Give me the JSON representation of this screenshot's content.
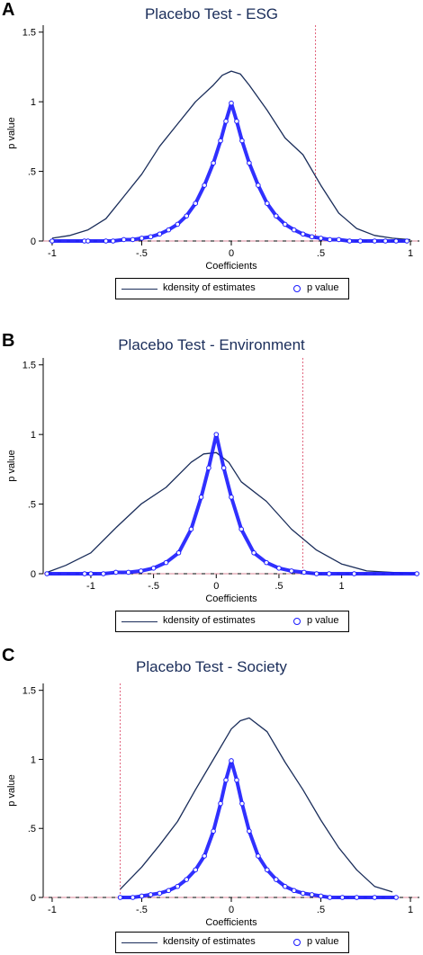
{
  "colors": {
    "density": "#1a2d5a",
    "pvalue": "#1a1aff",
    "vline": "#e0607a",
    "hline": "#d9879a",
    "title": "#1a2d5a"
  },
  "legend": {
    "density_label": "kdensity of estimates",
    "pvalue_label": "p value"
  },
  "chart_data": [
    {
      "type": "line",
      "panel": "A",
      "title": "Placebo Test - ESG",
      "xlabel": "Coefficients",
      "ylabel": "p value",
      "xlim": [
        -1.05,
        1.05
      ],
      "ylim": [
        0,
        1.55
      ],
      "xticks": [
        -1,
        -0.5,
        0,
        0.5,
        1
      ],
      "xtick_labels": [
        "-1",
        "-.5",
        "0",
        ".5",
        "1"
      ],
      "yticks": [
        0,
        0.5,
        1,
        1.5
      ],
      "ytick_labels": [
        "0",
        ".5",
        "1",
        "1.5"
      ],
      "vline": 0.47,
      "hline": 0.0,
      "series": [
        {
          "name": "kdensity of estimates",
          "kind": "line",
          "x": [
            -1.0,
            -0.9,
            -0.8,
            -0.7,
            -0.6,
            -0.5,
            -0.4,
            -0.3,
            -0.2,
            -0.1,
            -0.05,
            0.0,
            0.05,
            0.1,
            0.2,
            0.3,
            0.4,
            0.5,
            0.6,
            0.7,
            0.8,
            0.9,
            1.0
          ],
          "y": [
            0.02,
            0.04,
            0.08,
            0.16,
            0.32,
            0.48,
            0.68,
            0.84,
            1.0,
            1.12,
            1.19,
            1.22,
            1.2,
            1.12,
            0.94,
            0.74,
            0.62,
            0.4,
            0.2,
            0.09,
            0.04,
            0.02,
            0.01
          ]
        },
        {
          "name": "p value",
          "kind": "scatter",
          "x": [
            -1.0,
            -0.82,
            -0.8,
            -0.7,
            -0.66,
            -0.6,
            -0.55,
            -0.5,
            -0.45,
            -0.4,
            -0.35,
            -0.3,
            -0.25,
            -0.2,
            -0.15,
            -0.1,
            -0.06,
            -0.03,
            0.0,
            0.03,
            0.06,
            0.1,
            0.15,
            0.2,
            0.25,
            0.3,
            0.35,
            0.4,
            0.45,
            0.5,
            0.55,
            0.6,
            0.66,
            0.72,
            0.8,
            0.86,
            0.92,
            0.98
          ],
          "y": [
            0.0,
            0.0,
            0.0,
            0.0,
            0.0,
            0.01,
            0.01,
            0.02,
            0.03,
            0.05,
            0.08,
            0.12,
            0.18,
            0.27,
            0.4,
            0.56,
            0.72,
            0.86,
            0.99,
            0.86,
            0.72,
            0.56,
            0.4,
            0.27,
            0.18,
            0.12,
            0.08,
            0.05,
            0.03,
            0.02,
            0.01,
            0.01,
            0.0,
            0.0,
            0.0,
            0.0,
            0.0,
            0.0
          ]
        }
      ]
    },
    {
      "type": "line",
      "panel": "B",
      "title": "Placebo Test - Environment",
      "xlabel": "Coefficients",
      "ylabel": "p value",
      "xlim": [
        -1.38,
        1.62
      ],
      "ylim": [
        0,
        1.55
      ],
      "xticks": [
        -1,
        -0.5,
        0,
        0.5,
        1
      ],
      "xtick_labels": [
        "-1",
        "-.5",
        "0",
        ".5",
        "1"
      ],
      "yticks": [
        0,
        0.5,
        1,
        1.5
      ],
      "ytick_labels": [
        "0",
        ".5",
        "1",
        "1.5"
      ],
      "vline": 0.69,
      "hline": 0.0,
      "series": [
        {
          "name": "kdensity of estimates",
          "kind": "line",
          "x": [
            -1.35,
            -1.2,
            -1.0,
            -0.8,
            -0.6,
            -0.4,
            -0.2,
            -0.1,
            0.0,
            0.1,
            0.2,
            0.4,
            0.6,
            0.8,
            1.0,
            1.2,
            1.4,
            1.6
          ],
          "y": [
            0.01,
            0.06,
            0.15,
            0.33,
            0.5,
            0.62,
            0.8,
            0.86,
            0.87,
            0.8,
            0.66,
            0.52,
            0.32,
            0.17,
            0.07,
            0.02,
            0.01,
            0.0
          ]
        },
        {
          "name": "p value",
          "kind": "scatter",
          "x": [
            -1.35,
            -1.05,
            -1.0,
            -0.9,
            -0.8,
            -0.7,
            -0.6,
            -0.5,
            -0.4,
            -0.3,
            -0.2,
            -0.12,
            -0.06,
            0.0,
            0.06,
            0.12,
            0.2,
            0.3,
            0.4,
            0.5,
            0.6,
            0.7,
            0.8,
            0.9,
            1.1,
            1.6
          ],
          "y": [
            0.0,
            0.0,
            0.0,
            0.0,
            0.01,
            0.01,
            0.02,
            0.04,
            0.08,
            0.15,
            0.32,
            0.55,
            0.76,
            1.0,
            0.76,
            0.55,
            0.32,
            0.15,
            0.08,
            0.04,
            0.02,
            0.01,
            0.0,
            0.0,
            0.0,
            0.0
          ]
        }
      ]
    },
    {
      "type": "line",
      "panel": "C",
      "title": "Placebo Test - Society",
      "xlabel": "Coefficients",
      "ylabel": "p value",
      "xlim": [
        -1.05,
        1.05
      ],
      "ylim": [
        0,
        1.55
      ],
      "xticks": [
        -1,
        -0.5,
        0,
        0.5,
        1
      ],
      "xtick_labels": [
        "-1",
        "-.5",
        "0",
        ".5",
        "1"
      ],
      "yticks": [
        0,
        0.5,
        1,
        1.5
      ],
      "ytick_labels": [
        "0",
        ".5",
        "1",
        "1.5"
      ],
      "vline": -0.62,
      "hline": 0.0,
      "series": [
        {
          "name": "kdensity of estimates",
          "kind": "line",
          "x": [
            -0.62,
            -0.5,
            -0.4,
            -0.3,
            -0.2,
            -0.1,
            0.0,
            0.05,
            0.1,
            0.2,
            0.3,
            0.4,
            0.5,
            0.6,
            0.7,
            0.8,
            0.9
          ],
          "y": [
            0.06,
            0.22,
            0.38,
            0.55,
            0.78,
            1.0,
            1.22,
            1.28,
            1.3,
            1.2,
            0.98,
            0.78,
            0.56,
            0.36,
            0.2,
            0.08,
            0.04
          ]
        },
        {
          "name": "p value",
          "kind": "scatter",
          "x": [
            -0.62,
            -0.55,
            -0.5,
            -0.45,
            -0.4,
            -0.35,
            -0.3,
            -0.25,
            -0.2,
            -0.15,
            -0.1,
            -0.06,
            -0.03,
            0.0,
            0.03,
            0.06,
            0.1,
            0.15,
            0.2,
            0.25,
            0.3,
            0.35,
            0.4,
            0.45,
            0.5,
            0.55,
            0.62,
            0.7,
            0.8,
            0.92
          ],
          "y": [
            0.0,
            0.0,
            0.01,
            0.02,
            0.03,
            0.05,
            0.08,
            0.13,
            0.2,
            0.3,
            0.48,
            0.68,
            0.85,
            0.99,
            0.85,
            0.68,
            0.48,
            0.3,
            0.2,
            0.13,
            0.08,
            0.05,
            0.03,
            0.02,
            0.01,
            0.0,
            0.0,
            0.0,
            0.0,
            0.0
          ]
        }
      ]
    }
  ]
}
